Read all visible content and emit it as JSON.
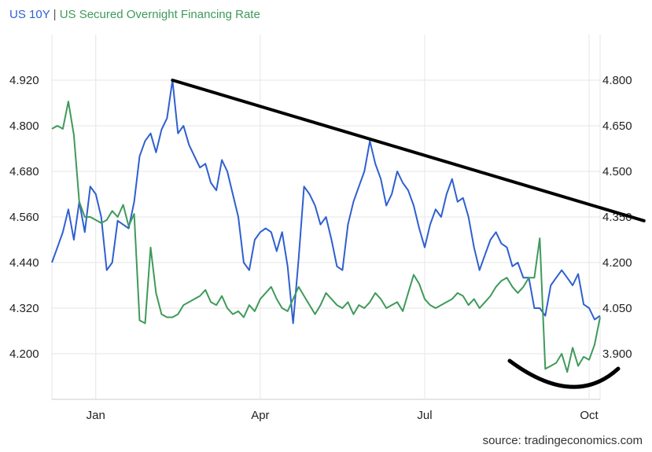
{
  "title": {
    "series1": "US 10Y",
    "separator": "|",
    "series2": "US Secured Overnight Financing Rate"
  },
  "source": "source: tradingeconomics.com",
  "colors": {
    "us10y": "#2f5fd0",
    "sofr": "#3f9a5a",
    "annotation": "#000000",
    "grid": "#e6e6e6"
  },
  "chart_data": {
    "type": "line",
    "title": "US 10Y | US Secured Overnight Financing Rate",
    "x_tick_labels": [
      "Jan",
      "Apr",
      "Jul",
      "Oct"
    ],
    "x_tick_month_index": [
      3,
      6,
      9,
      12
    ],
    "left_axis": {
      "series": "US 10Y",
      "ticks": [
        "4.920",
        "4.800",
        "4.680",
        "4.560",
        "4.440",
        "4.320",
        "4.200"
      ],
      "ylim": [
        4.08,
        5.04
      ]
    },
    "right_axis": {
      "series": "US Secured Overnight Financing Rate",
      "ticks": [
        "4.800",
        "4.650",
        "4.500",
        "4.350",
        "4.200",
        "4.050",
        "3.900"
      ],
      "ylim": [
        3.75,
        4.95
      ]
    },
    "x_range_month_index": [
      2.2,
      12.2
    ],
    "series": [
      {
        "name": "US 10Y",
        "axis": "left",
        "x": [
          2.2,
          2.3,
          2.4,
          2.5,
          2.6,
          2.7,
          2.8,
          2.9,
          3.0,
          3.1,
          3.2,
          3.3,
          3.4,
          3.5,
          3.6,
          3.7,
          3.8,
          3.9,
          4.0,
          4.1,
          4.2,
          4.3,
          4.4,
          4.5,
          4.6,
          4.7,
          4.8,
          4.9,
          5.0,
          5.1,
          5.2,
          5.3,
          5.4,
          5.5,
          5.6,
          5.7,
          5.8,
          5.9,
          6.0,
          6.1,
          6.2,
          6.3,
          6.4,
          6.5,
          6.6,
          6.7,
          6.8,
          6.9,
          7.0,
          7.1,
          7.2,
          7.3,
          7.4,
          7.5,
          7.6,
          7.7,
          7.8,
          7.9,
          8.0,
          8.1,
          8.2,
          8.3,
          8.4,
          8.5,
          8.6,
          8.7,
          8.8,
          8.9,
          9.0,
          9.1,
          9.2,
          9.3,
          9.4,
          9.5,
          9.6,
          9.7,
          9.8,
          9.9,
          10.0,
          10.1,
          10.2,
          10.3,
          10.4,
          10.5,
          10.6,
          10.7,
          10.8,
          10.9,
          11.0,
          11.1,
          11.2,
          11.3,
          11.4,
          11.5,
          11.6,
          11.7,
          11.8,
          11.9,
          12.0,
          12.1,
          12.2
        ],
        "values": [
          4.44,
          4.48,
          4.52,
          4.58,
          4.5,
          4.6,
          4.52,
          4.64,
          4.62,
          4.56,
          4.42,
          4.44,
          4.55,
          4.54,
          4.53,
          4.6,
          4.72,
          4.76,
          4.78,
          4.73,
          4.79,
          4.82,
          4.92,
          4.78,
          4.8,
          4.75,
          4.72,
          4.69,
          4.7,
          4.65,
          4.63,
          4.71,
          4.68,
          4.62,
          4.56,
          4.44,
          4.42,
          4.5,
          4.52,
          4.53,
          4.52,
          4.47,
          4.52,
          4.43,
          4.28,
          4.45,
          4.64,
          4.62,
          4.59,
          4.54,
          4.56,
          4.5,
          4.43,
          4.42,
          4.54,
          4.6,
          4.64,
          4.68,
          4.76,
          4.7,
          4.66,
          4.59,
          4.62,
          4.68,
          4.65,
          4.63,
          4.59,
          4.53,
          4.48,
          4.54,
          4.58,
          4.56,
          4.62,
          4.66,
          4.6,
          4.61,
          4.56,
          4.48,
          4.42,
          4.46,
          4.5,
          4.52,
          4.49,
          4.48,
          4.43,
          4.44,
          4.4,
          4.4,
          4.32,
          4.32,
          4.3,
          4.38,
          4.4,
          4.42,
          4.4,
          4.38,
          4.41,
          4.33,
          4.32,
          4.29,
          4.3
        ]
      },
      {
        "name": "US Secured Overnight Financing Rate",
        "axis": "right",
        "x": [
          2.2,
          2.3,
          2.4,
          2.5,
          2.6,
          2.7,
          2.8,
          2.9,
          3.0,
          3.1,
          3.2,
          3.3,
          3.4,
          3.5,
          3.6,
          3.7,
          3.8,
          3.9,
          4.0,
          4.1,
          4.2,
          4.3,
          4.4,
          4.5,
          4.6,
          4.7,
          4.8,
          4.9,
          5.0,
          5.1,
          5.2,
          5.3,
          5.4,
          5.5,
          5.6,
          5.7,
          5.8,
          5.9,
          6.0,
          6.1,
          6.2,
          6.3,
          6.4,
          6.5,
          6.6,
          6.7,
          6.8,
          6.9,
          7.0,
          7.1,
          7.2,
          7.3,
          7.4,
          7.5,
          7.6,
          7.7,
          7.8,
          7.9,
          8.0,
          8.1,
          8.2,
          8.3,
          8.4,
          8.5,
          8.6,
          8.7,
          8.8,
          8.9,
          9.0,
          9.1,
          9.2,
          9.3,
          9.4,
          9.5,
          9.6,
          9.7,
          9.8,
          9.9,
          10.0,
          10.1,
          10.2,
          10.3,
          10.4,
          10.5,
          10.6,
          10.7,
          10.8,
          10.9,
          11.0,
          11.1,
          11.2,
          11.3,
          11.4,
          11.5,
          11.6,
          11.7,
          11.8,
          11.9,
          12.0,
          12.1,
          12.2
        ],
        "values": [
          4.64,
          4.65,
          4.64,
          4.73,
          4.62,
          4.4,
          4.35,
          4.35,
          4.34,
          4.33,
          4.34,
          4.37,
          4.35,
          4.39,
          4.32,
          4.36,
          4.01,
          4.0,
          4.25,
          4.1,
          4.03,
          4.02,
          4.02,
          4.03,
          4.06,
          4.07,
          4.08,
          4.09,
          4.11,
          4.07,
          4.06,
          4.09,
          4.05,
          4.03,
          4.04,
          4.02,
          4.06,
          4.04,
          4.08,
          4.1,
          4.12,
          4.08,
          4.05,
          4.04,
          4.08,
          4.12,
          4.09,
          4.06,
          4.03,
          4.06,
          4.1,
          4.08,
          4.06,
          4.05,
          4.07,
          4.03,
          4.06,
          4.05,
          4.07,
          4.1,
          4.08,
          4.05,
          4.06,
          4.07,
          4.04,
          4.1,
          4.16,
          4.13,
          4.08,
          4.06,
          4.05,
          4.06,
          4.07,
          4.08,
          4.1,
          4.09,
          4.06,
          4.08,
          4.05,
          4.07,
          4.09,
          4.12,
          4.14,
          4.15,
          4.12,
          4.1,
          4.12,
          4.15,
          4.15,
          4.28,
          3.85,
          3.86,
          3.87,
          3.9,
          3.84,
          3.92,
          3.86,
          3.89,
          3.88,
          3.93,
          4.02
        ]
      }
    ],
    "annotations": [
      {
        "type": "trendline",
        "from": [
          4.4,
          4.92
        ],
        "to": [
          13.0,
          4.55
        ],
        "axis": "left"
      },
      {
        "type": "arc",
        "note": "hand-drawn curve under SOFR trough"
      }
    ],
    "grid": true,
    "legend": "title"
  }
}
